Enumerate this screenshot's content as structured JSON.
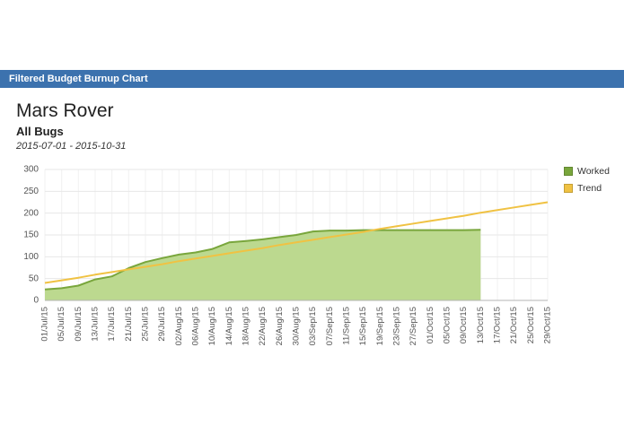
{
  "header": {
    "title": "Filtered Budget Burnup Chart",
    "bg_color": "#3c72ae"
  },
  "title": "Mars Rover",
  "subtitle": "All Bugs",
  "date_range": "2015-07-01 - 2015-10-31",
  "chart_data": {
    "type": "area",
    "title": "Filtered Budget Burnup Chart",
    "xlabel": "",
    "ylabel": "",
    "ylim": [
      0,
      300
    ],
    "yticks": [
      0,
      50,
      100,
      150,
      200,
      250,
      300
    ],
    "grid": true,
    "legend_position": "top-right",
    "categories": [
      "01/Jul/15",
      "05/Jul/15",
      "09/Jul/15",
      "13/Jul/15",
      "17/Jul/15",
      "21/Jul/15",
      "25/Jul/15",
      "29/Jul/15",
      "02/Aug/15",
      "06/Aug/15",
      "10/Aug/15",
      "14/Aug/15",
      "18/Aug/15",
      "22/Aug/15",
      "26/Aug/15",
      "30/Aug/15",
      "03/Sep/15",
      "07/Sep/15",
      "11/Sep/15",
      "15/Sep/15",
      "19/Sep/15",
      "23/Sep/15",
      "27/Sep/15",
      "01/Oct/15",
      "05/Oct/15",
      "09/Oct/15",
      "13/Oct/15",
      "17/Oct/15",
      "21/Oct/15",
      "25/Oct/15",
      "29/Oct/15"
    ],
    "series": [
      {
        "name": "Worked",
        "type": "area",
        "color": "#79a63c",
        "fill": "#bcd98f",
        "values": [
          25,
          28,
          34,
          48,
          55,
          74,
          88,
          97,
          105,
          110,
          118,
          133,
          136,
          140,
          145,
          150,
          158,
          160,
          160,
          161,
          161,
          161,
          161,
          161,
          161,
          161,
          162
        ]
      },
      {
        "name": "Trend",
        "type": "line",
        "color": "#f0c243",
        "values": [
          40,
          46,
          52,
          59,
          65,
          71,
          77,
          83,
          90,
          96,
          102,
          108,
          114,
          120,
          127,
          133,
          139,
          145,
          151,
          157,
          164,
          170,
          176,
          182,
          188,
          194,
          201,
          207,
          213,
          219,
          225
        ]
      }
    ]
  }
}
